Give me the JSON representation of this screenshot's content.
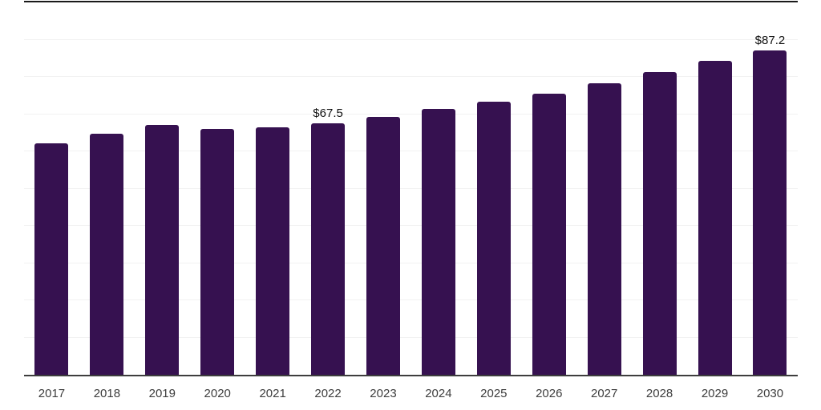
{
  "chart_data": {
    "type": "bar",
    "title": "",
    "xlabel": "",
    "ylabel": "",
    "categories": [
      "2017",
      "2018",
      "2019",
      "2020",
      "2021",
      "2022",
      "2023",
      "2024",
      "2025",
      "2026",
      "2027",
      "2028",
      "2029",
      "2030"
    ],
    "values": [
      62.2,
      64.7,
      67.2,
      66.1,
      66.5,
      67.5,
      69.2,
      71.4,
      73.4,
      75.5,
      78.3,
      81.3,
      84.2,
      87.2
    ],
    "data_labels": [
      "",
      "",
      "",
      "",
      "",
      "$67.5",
      "",
      "",
      "",
      "",
      "",
      "",
      "",
      "$87.2"
    ],
    "ylim": [
      0,
      100
    ],
    "grid": true,
    "grid_interval": 10,
    "legend": "none"
  },
  "colors": {
    "bar": "#361150",
    "gridline": "#f2f2f2",
    "axis_top_line": "#1a1a1a",
    "axis_bottom_line": "#3d3d3d",
    "tick_label": "#3d3d3d",
    "data_label": "#111111",
    "background": "#ffffff"
  }
}
